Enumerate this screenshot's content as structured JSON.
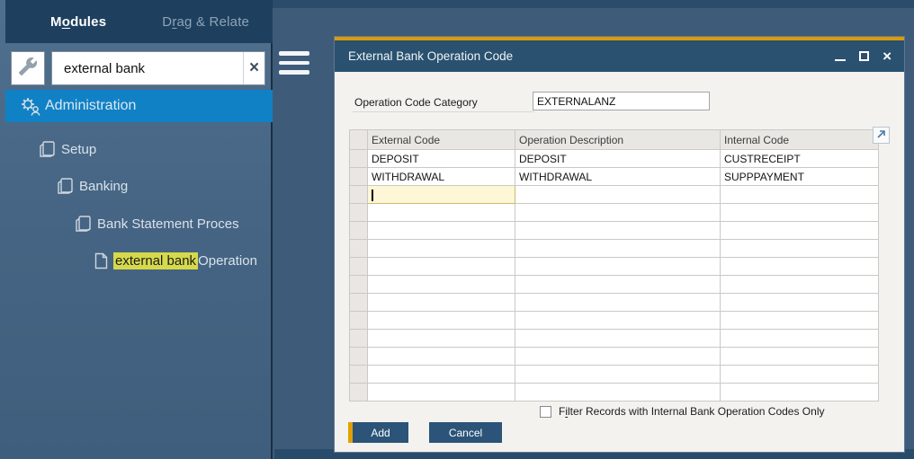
{
  "sidebar": {
    "tabs": [
      {
        "pre": "M",
        "hotkey": "o",
        "post": "dules"
      },
      {
        "pre": "D",
        "hotkey": "r",
        "post": "ag & Relate"
      }
    ],
    "search": {
      "value": "external bank",
      "clear_glyph": "×"
    },
    "tree": {
      "administration": "Administration",
      "setup": "Setup",
      "banking": "Banking",
      "bank_statement": "Bank Statement Proces",
      "external_highlight": "external bank",
      "external_rest": " Operation"
    }
  },
  "dialog": {
    "title": "External Bank Operation Code",
    "close_glyph": "×",
    "field": {
      "label": "Operation Code Category",
      "value": "EXTERNALANZ"
    },
    "table": {
      "columns": [
        "External Code",
        "Operation Description",
        "Internal Code"
      ],
      "rows": [
        {
          "external_code": "DEPOSIT",
          "operation_description": "DEPOSIT",
          "internal_code": "CUSTRECEIPT"
        },
        {
          "external_code": "WITHDRAWAL",
          "operation_description": "WITHDRAWAL",
          "internal_code": "SUPPPAYMENT"
        }
      ],
      "active_row_index": 2,
      "empty_row_count": 11
    },
    "checkbox": {
      "checked": false,
      "label_pre": "F",
      "label_hotkey": "i",
      "label_post": "lter Records with Internal Bank Operation Codes Only"
    },
    "buttons": {
      "add": "Add",
      "cancel": "Cancel"
    }
  },
  "colors": {
    "app_background": "#3e5c7a",
    "sidebar_selected": "#1181c5",
    "search_highlight": "#d5d94a",
    "titlebar": "#2a516f",
    "accent_orange": "#dd9b07",
    "active_cell": "#fdf6d7",
    "button": "#2b5478"
  }
}
